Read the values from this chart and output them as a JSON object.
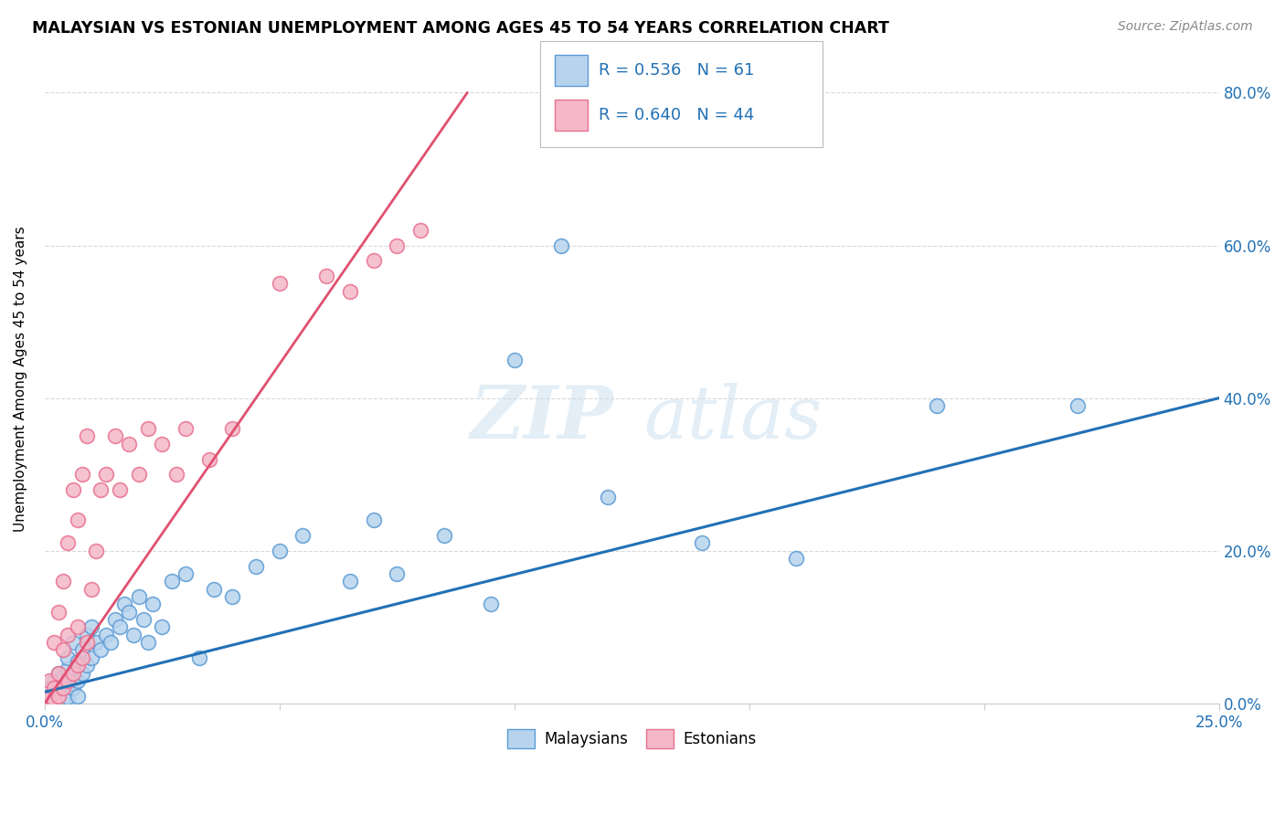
{
  "title": "MALAYSIAN VS ESTONIAN UNEMPLOYMENT AMONG AGES 45 TO 54 YEARS CORRELATION CHART",
  "source": "Source: ZipAtlas.com",
  "ylabel": "Unemployment Among Ages 45 to 54 years",
  "ytick_labels": [
    "0.0%",
    "20.0%",
    "40.0%",
    "60.0%",
    "80.0%"
  ],
  "ytick_vals": [
    0.0,
    0.2,
    0.4,
    0.6,
    0.8
  ],
  "xmin": 0.0,
  "xmax": 0.25,
  "ymin": 0.0,
  "ymax": 0.85,
  "legend_blue_R": "R = 0.536",
  "legend_blue_N": "N = 61",
  "legend_pink_R": "R = 0.640",
  "legend_pink_N": "N = 44",
  "label_blue": "Malaysians",
  "label_pink": "Estonians",
  "color_blue_face": "#b8d4ed",
  "color_blue_edge": "#5b9bd5",
  "color_pink_face": "#f4b8c8",
  "color_pink_edge": "#e87090",
  "color_blue_line": "#2171b5",
  "color_pink_line": "#e05070",
  "color_legend_text": "#2171b5",
  "color_grid": "#d8d8d8",
  "color_axis": "#cccccc",
  "blue_trend_x": [
    0.0,
    0.25
  ],
  "blue_trend_y": [
    0.015,
    0.4
  ],
  "pink_trend_x": [
    0.0,
    0.09
  ],
  "pink_trend_y": [
    0.0,
    0.8
  ],
  "blue_dots_x": [
    0.001,
    0.001,
    0.002,
    0.002,
    0.002,
    0.003,
    0.003,
    0.003,
    0.004,
    0.004,
    0.004,
    0.005,
    0.005,
    0.005,
    0.005,
    0.006,
    0.006,
    0.006,
    0.007,
    0.007,
    0.007,
    0.008,
    0.008,
    0.009,
    0.009,
    0.01,
    0.01,
    0.011,
    0.012,
    0.013,
    0.014,
    0.015,
    0.016,
    0.017,
    0.018,
    0.019,
    0.02,
    0.021,
    0.022,
    0.023,
    0.025,
    0.027,
    0.03,
    0.033,
    0.036,
    0.04,
    0.045,
    0.05,
    0.055,
    0.065,
    0.07,
    0.075,
    0.085,
    0.095,
    0.1,
    0.11,
    0.12,
    0.14,
    0.16,
    0.19,
    0.22
  ],
  "blue_dots_y": [
    0.005,
    0.02,
    0.01,
    0.03,
    0.005,
    0.02,
    0.04,
    0.008,
    0.015,
    0.035,
    0.005,
    0.025,
    0.045,
    0.008,
    0.06,
    0.02,
    0.04,
    0.08,
    0.03,
    0.055,
    0.01,
    0.04,
    0.07,
    0.05,
    0.09,
    0.06,
    0.1,
    0.08,
    0.07,
    0.09,
    0.08,
    0.11,
    0.1,
    0.13,
    0.12,
    0.09,
    0.14,
    0.11,
    0.08,
    0.13,
    0.1,
    0.16,
    0.17,
    0.06,
    0.15,
    0.14,
    0.18,
    0.2,
    0.22,
    0.16,
    0.24,
    0.17,
    0.22,
    0.13,
    0.45,
    0.6,
    0.27,
    0.21,
    0.19,
    0.39,
    0.39
  ],
  "pink_dots_x": [
    0.001,
    0.001,
    0.001,
    0.002,
    0.002,
    0.002,
    0.003,
    0.003,
    0.003,
    0.004,
    0.004,
    0.004,
    0.005,
    0.005,
    0.005,
    0.006,
    0.006,
    0.007,
    0.007,
    0.007,
    0.008,
    0.008,
    0.009,
    0.009,
    0.01,
    0.011,
    0.012,
    0.013,
    0.015,
    0.016,
    0.018,
    0.02,
    0.022,
    0.025,
    0.028,
    0.03,
    0.035,
    0.04,
    0.05,
    0.06,
    0.065,
    0.07,
    0.075,
    0.08
  ],
  "pink_dots_y": [
    0.005,
    0.01,
    0.03,
    0.02,
    0.08,
    0.005,
    0.04,
    0.01,
    0.12,
    0.02,
    0.07,
    0.16,
    0.03,
    0.09,
    0.21,
    0.04,
    0.28,
    0.05,
    0.1,
    0.24,
    0.06,
    0.3,
    0.08,
    0.35,
    0.15,
    0.2,
    0.28,
    0.3,
    0.35,
    0.28,
    0.34,
    0.3,
    0.36,
    0.34,
    0.3,
    0.36,
    0.32,
    0.36,
    0.55,
    0.56,
    0.54,
    0.58,
    0.6,
    0.62
  ],
  "background_color": "#ffffff",
  "dot_size": 130
}
